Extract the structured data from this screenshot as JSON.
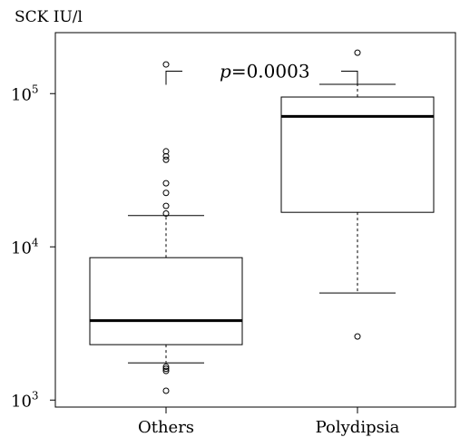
{
  "chart_data": {
    "type": "box",
    "yscale": "log",
    "ylim": [
      900,
      250000
    ],
    "ylabel": "SCK IU/l",
    "y_ticks": [
      {
        "value": 1000,
        "base": "10",
        "exp": "3"
      },
      {
        "value": 10000,
        "base": "10",
        "exp": "4"
      },
      {
        "value": 100000,
        "base": "10",
        "exp": "5"
      }
    ],
    "categories": [
      "Others",
      "Polydipsia"
    ],
    "boxes": [
      {
        "name": "Others",
        "whisker_low": 1750,
        "q1": 2300,
        "median": 3300,
        "q3": 8500,
        "whisker_high": 16000,
        "outliers": [
          1150,
          1550,
          1600,
          1650,
          16500,
          18500,
          22500,
          26000,
          37000,
          39000,
          42000,
          155000
        ]
      },
      {
        "name": "Polydipsia",
        "whisker_low": 5000,
        "q1": 16800,
        "median": 71000,
        "q3": 95000,
        "whisker_high": 115000,
        "outliers": [
          2600,
          185000
        ]
      }
    ],
    "annotation": {
      "p_letter": "p",
      "text": "=0.0003"
    },
    "bracket_y": 140000
  }
}
